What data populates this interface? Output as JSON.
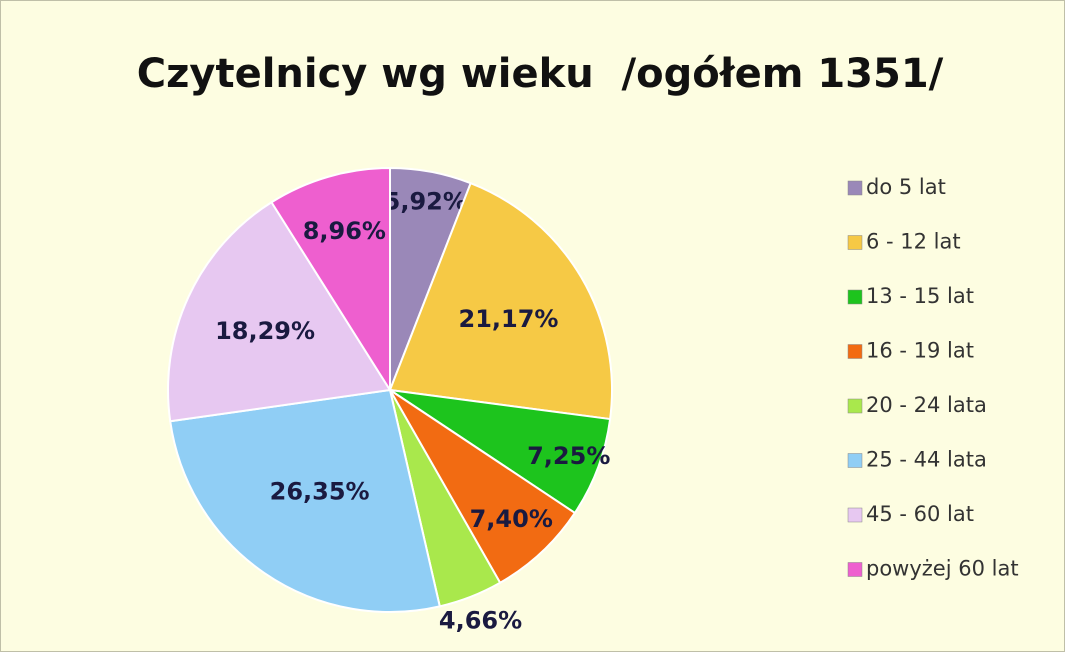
{
  "chart_data": {
    "type": "pie",
    "title": "Czytelnicy wg wieku  /ogółem 1351/",
    "categories": [
      "do 5 lat",
      "6 - 12 lat",
      "13 - 15 lat",
      "16 - 19 lat",
      "20 - 24 lata",
      "25 - 44 lata",
      "45 - 60 lat",
      "powyżej 60 lat"
    ],
    "values": [
      5.92,
      21.17,
      7.25,
      7.4,
      4.66,
      26.35,
      18.29,
      8.96
    ],
    "value_labels": [
      "5,92%",
      "21,17%",
      "7,25%",
      "7,40%",
      "4,66%",
      "26,35%",
      "18,29%",
      "8,96%"
    ],
    "colors": [
      "#9a88b8",
      "#f6c945",
      "#1dc41d",
      "#f26b12",
      "#a9e84c",
      "#90cef5",
      "#e7c8f1",
      "#ee5fcf"
    ],
    "legend": "right"
  }
}
